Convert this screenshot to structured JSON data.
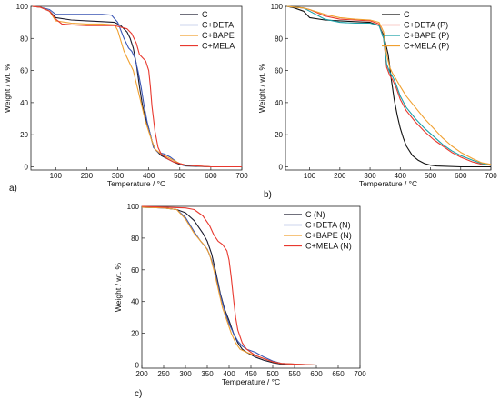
{
  "figure": {
    "panel_labels": [
      "a)",
      "b)",
      "c)"
    ]
  },
  "chart_data": [
    {
      "type": "line",
      "panel": "a)",
      "xlabel": "Temperature / °C",
      "ylabel": "Weight / wt. %",
      "xlim": [
        20,
        700
      ],
      "ylim": [
        -2,
        100
      ],
      "xticks": [
        100,
        200,
        300,
        400,
        500,
        600,
        700
      ],
      "yticks": [
        0,
        20,
        40,
        60,
        80,
        100
      ],
      "legend": "top-right",
      "series": [
        {
          "name": "C",
          "color": "#1a1a2e",
          "x": [
            25,
            50,
            80,
            100,
            150,
            200,
            250,
            290,
            310,
            330,
            340,
            350,
            360,
            370,
            380,
            390,
            400,
            410,
            420,
            440,
            460,
            480,
            500,
            520,
            600,
            700
          ],
          "y": [
            100,
            99.5,
            97,
            93,
            91.5,
            91,
            90.5,
            90,
            88,
            84,
            80,
            74,
            64,
            50,
            38,
            30,
            24,
            16,
            11,
            7,
            5,
            3,
            1.5,
            0.5,
            0,
            0
          ]
        },
        {
          "name": "C+DETA",
          "color": "#3a55b4",
          "x": [
            25,
            50,
            80,
            100,
            150,
            200,
            250,
            280,
            300,
            320,
            335,
            345,
            355,
            365,
            375,
            385,
            395,
            405,
            415,
            430,
            450,
            470,
            490,
            510,
            600,
            700
          ],
          "y": [
            100,
            99.5,
            98,
            95,
            95,
            95,
            95,
            94.5,
            90,
            80,
            74,
            72,
            68,
            60,
            50,
            38,
            28,
            20,
            12,
            9,
            8,
            6,
            3,
            1,
            0,
            0
          ]
        },
        {
          "name": "C+BAPE",
          "color": "#f0a030",
          "x": [
            25,
            50,
            80,
            100,
            150,
            200,
            250,
            290,
            300,
            320,
            335,
            350,
            360,
            370,
            380,
            390,
            400,
            410,
            420,
            440,
            460,
            480,
            500,
            520,
            600,
            700
          ],
          "y": [
            100,
            99.5,
            97,
            91,
            89.5,
            89,
            89,
            88.5,
            85,
            72,
            66,
            60,
            52,
            44,
            36,
            28,
            22,
            16,
            11,
            8,
            6,
            4,
            2,
            1,
            0,
            0
          ]
        },
        {
          "name": "C+MELA",
          "color": "#e8392f",
          "x": [
            25,
            50,
            80,
            100,
            120,
            150,
            200,
            250,
            290,
            310,
            330,
            345,
            360,
            370,
            380,
            390,
            400,
            405,
            410,
            420,
            430,
            440,
            460,
            480,
            500,
            520,
            600,
            700
          ],
          "y": [
            100,
            99.5,
            97,
            92,
            89,
            88.5,
            88,
            88,
            88,
            87,
            86,
            83,
            77,
            70,
            68,
            66,
            60,
            50,
            38,
            22,
            12,
            8,
            5,
            3,
            2,
            1,
            0,
            0
          ]
        }
      ]
    },
    {
      "type": "line",
      "panel": "b)",
      "xlabel": "Temperature / °C",
      "ylabel": "Weight / wt. %",
      "xlim": [
        20,
        700
      ],
      "ylim": [
        -2,
        100
      ],
      "xticks": [
        100,
        200,
        300,
        400,
        500,
        600,
        700
      ],
      "yticks": [
        0,
        20,
        40,
        60,
        80,
        100
      ],
      "legend": "top-right",
      "series": [
        {
          "name": "C",
          "color": "#111111",
          "x": [
            25,
            50,
            80,
            100,
            150,
            200,
            250,
            300,
            330,
            345,
            360,
            370,
            380,
            390,
            400,
            410,
            420,
            440,
            460,
            480,
            500,
            520,
            600,
            700
          ],
          "y": [
            100,
            99,
            97,
            93,
            91.5,
            91,
            90.5,
            90,
            88,
            82,
            70,
            55,
            42,
            32,
            24,
            18,
            13,
            7,
            4,
            2,
            1,
            0.5,
            0,
            0
          ]
        },
        {
          "name": "C+DETA (P)",
          "color": "#e8392f",
          "x": [
            25,
            50,
            80,
            100,
            150,
            200,
            250,
            300,
            330,
            345,
            355,
            365,
            375,
            385,
            400,
            420,
            450,
            480,
            510,
            540,
            570,
            600,
            640,
            670,
            700
          ],
          "y": [
            100,
            99.5,
            99,
            98,
            94,
            92,
            91.5,
            91,
            89,
            80,
            62,
            57,
            54,
            50,
            42,
            35,
            28,
            22,
            17,
            13,
            9,
            6,
            3,
            1.5,
            1
          ]
        },
        {
          "name": "C+BAPE (P)",
          "color": "#1aa0a8",
          "x": [
            25,
            50,
            80,
            100,
            150,
            200,
            250,
            300,
            330,
            345,
            355,
            365,
            375,
            385,
            400,
            420,
            450,
            480,
            510,
            540,
            570,
            600,
            640,
            670,
            700
          ],
          "y": [
            100,
            99.5,
            99,
            97,
            92,
            90,
            89.5,
            89.5,
            88,
            80,
            64,
            59,
            56,
            52,
            44,
            37,
            30,
            24,
            19,
            14,
            10,
            7,
            4,
            2,
            1
          ]
        },
        {
          "name": "C+MELA (P)",
          "color": "#f0a030",
          "x": [
            25,
            50,
            80,
            100,
            150,
            200,
            250,
            300,
            330,
            345,
            355,
            365,
            375,
            385,
            400,
            420,
            450,
            480,
            510,
            540,
            570,
            600,
            640,
            670,
            700
          ],
          "y": [
            100,
            99.5,
            99,
            98,
            95,
            93,
            92,
            91.5,
            90,
            84,
            70,
            62,
            58,
            55,
            50,
            44,
            37,
            30,
            24,
            18,
            13,
            9,
            5,
            2.5,
            1.5
          ]
        }
      ]
    },
    {
      "type": "line",
      "panel": "c)",
      "xlabel": "Temperature / °C",
      "ylabel": "Weight / wt. %",
      "xlim": [
        200,
        700
      ],
      "ylim": [
        -2,
        100
      ],
      "xticks": [
        200,
        250,
        300,
        350,
        400,
        450,
        500,
        550,
        600,
        650,
        700
      ],
      "yticks": [
        0,
        20,
        40,
        60,
        80,
        100
      ],
      "legend": "top-right",
      "series": [
        {
          "name": "C (N)",
          "color": "#1a1a2e",
          "x": [
            200,
            250,
            280,
            300,
            320,
            340,
            350,
            360,
            370,
            380,
            390,
            400,
            410,
            420,
            430,
            440,
            460,
            480,
            500,
            520,
            550,
            600,
            700
          ],
          "y": [
            99.5,
            99,
            98,
            96,
            91,
            83,
            78,
            70,
            58,
            45,
            35,
            28,
            20,
            14,
            10,
            8,
            5,
            3,
            1.5,
            0.5,
            0,
            0,
            0
          ]
        },
        {
          "name": "C+DETA (N)",
          "color": "#3a55b4",
          "x": [
            200,
            250,
            280,
            300,
            320,
            335,
            350,
            360,
            370,
            380,
            390,
            400,
            410,
            420,
            430,
            440,
            460,
            480,
            500,
            520,
            550,
            600,
            700
          ],
          "y": [
            99.5,
            99,
            98,
            93,
            84,
            78,
            73,
            66,
            56,
            44,
            34,
            26,
            20,
            15,
            12,
            10,
            8,
            5,
            2.5,
            1,
            0.5,
            0,
            0
          ]
        },
        {
          "name": "C+BAPE (N)",
          "color": "#f0a030",
          "x": [
            200,
            250,
            280,
            300,
            320,
            335,
            345,
            355,
            365,
            375,
            385,
            395,
            405,
            415,
            425,
            440,
            460,
            480,
            500,
            520,
            550,
            600,
            700
          ],
          "y": [
            99.5,
            99,
            98,
            92,
            83,
            78,
            75,
            70,
            60,
            48,
            36,
            28,
            20,
            14,
            10,
            8,
            6,
            4,
            2,
            1,
            0.5,
            0,
            0
          ]
        },
        {
          "name": "C+MELA (N)",
          "color": "#e8392f",
          "x": [
            200,
            250,
            300,
            320,
            340,
            355,
            365,
            375,
            385,
            395,
            400,
            405,
            410,
            415,
            420,
            430,
            440,
            460,
            480,
            500,
            520,
            550,
            600,
            700
          ],
          "y": [
            100,
            99.5,
            99,
            98,
            94,
            88,
            82,
            78,
            76,
            72,
            66,
            55,
            42,
            30,
            22,
            14,
            10,
            6,
            4,
            2,
            1,
            0.5,
            0,
            0
          ]
        }
      ]
    }
  ]
}
